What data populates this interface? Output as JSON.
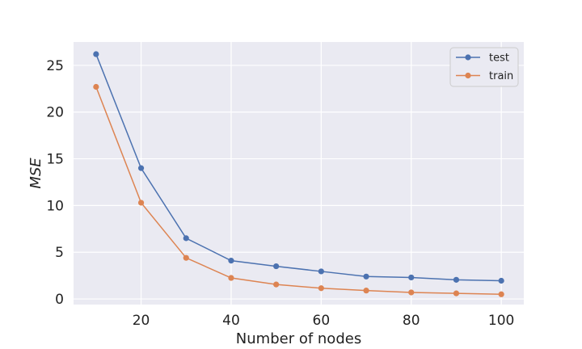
{
  "chart_data": {
    "type": "line",
    "xlabel": "Number of nodes",
    "ylabel": "MSE",
    "x": [
      10,
      20,
      30,
      40,
      50,
      60,
      70,
      80,
      90,
      100
    ],
    "xlim": [
      5,
      105
    ],
    "ylim": [
      -0.6,
      27.5
    ],
    "xticks": [
      20,
      40,
      60,
      80,
      100
    ],
    "yticks": [
      0,
      5,
      10,
      15,
      20,
      25
    ],
    "grid": true,
    "legend_position": "top-right",
    "series": [
      {
        "name": "test",
        "color": "#4c72b0",
        "values": [
          26.2,
          14.0,
          6.5,
          4.1,
          3.5,
          2.95,
          2.4,
          2.3,
          2.05,
          1.95
        ]
      },
      {
        "name": "train",
        "color": "#dd8452",
        "values": [
          22.7,
          10.3,
          4.4,
          2.25,
          1.55,
          1.15,
          0.9,
          0.7,
          0.6,
          0.5
        ]
      }
    ]
  }
}
